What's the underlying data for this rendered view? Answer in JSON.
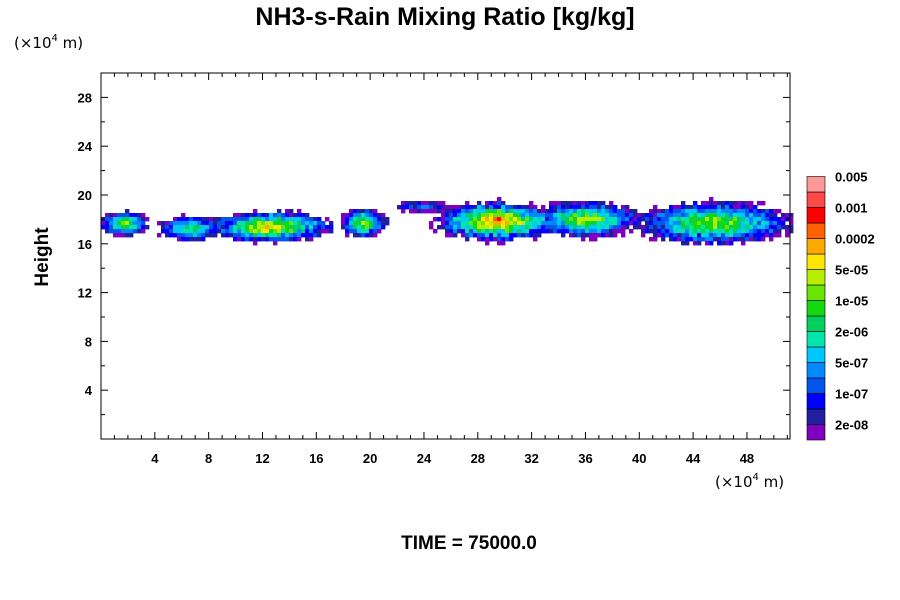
{
  "chart_data": {
    "type": "heatmap",
    "title": "NH3-s-Rain Mixing Ratio [kg/kg]",
    "ylabel": "Height",
    "x_unit": {
      "prefix": "(×10",
      "exp": "4",
      "suffix": " m)"
    },
    "y_unit": {
      "prefix": "(×10",
      "exp": "4",
      "suffix": " m)"
    },
    "xlim": [
      0,
      51.2
    ],
    "ylim": [
      0,
      30
    ],
    "x_ticks": [
      4,
      8,
      12,
      16,
      20,
      24,
      28,
      32,
      36,
      40,
      44,
      48
    ],
    "y_ticks": [
      4,
      8,
      12,
      16,
      20,
      24,
      28
    ],
    "legend": {
      "placement": "right",
      "colors": [
        "#7f00bf",
        "#1f1f9f",
        "#0000ff",
        "#0055ee",
        "#0088ff",
        "#00c8ff",
        "#00e6aa",
        "#00d060",
        "#11d811",
        "#66e600",
        "#b5ee00",
        "#ffe600",
        "#ffaa00",
        "#ff6000",
        "#ff0000",
        "#ff4848",
        "#ff9999"
      ],
      "labels": [
        "2e-08",
        "1e-07",
        "5e-07",
        "2e-06",
        "1e-05",
        "5e-05",
        "0.0002",
        "0.001",
        "0.005"
      ]
    },
    "time_label": "TIME = 75000.0",
    "clouds": [
      {
        "x": [
          0,
          3.5
        ],
        "y": [
          16.9,
          19.0
        ],
        "peak": 9
      },
      {
        "x": [
          4.4,
          8.8
        ],
        "y": [
          16.5,
          18.6
        ],
        "peak": 8
      },
      {
        "x": [
          8.0,
          17.0
        ],
        "y": [
          16.4,
          19.0
        ],
        "peak": 12
      },
      {
        "x": [
          17.8,
          21.2
        ],
        "y": [
          16.8,
          19.2
        ],
        "peak": 10
      },
      {
        "x": [
          22.0,
          26.0
        ],
        "y": [
          18.9,
          19.8
        ],
        "peak": 3
      },
      {
        "x": [
          25.0,
          34.0
        ],
        "y": [
          16.5,
          19.8
        ],
        "peak": 13
      },
      {
        "x": [
          32.0,
          40.0
        ],
        "y": [
          16.8,
          19.8
        ],
        "peak": 10
      },
      {
        "x": [
          40.0,
          51.2
        ],
        "y": [
          16.2,
          19.8
        ],
        "peak": 10
      }
    ]
  }
}
